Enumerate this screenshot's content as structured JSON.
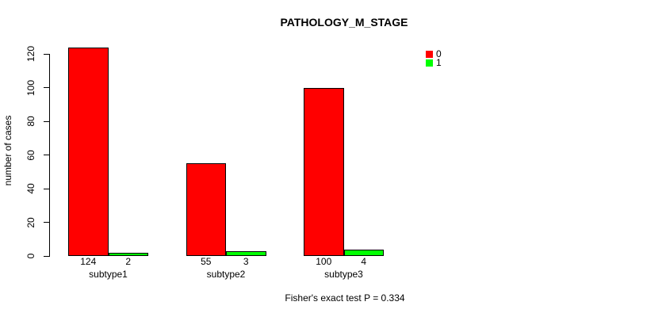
{
  "chart_data": {
    "type": "bar",
    "title": "PATHOLOGY_M_STAGE",
    "ylabel": "number of cases",
    "xlabel": "",
    "categories": [
      "subtype1",
      "subtype2",
      "subtype3"
    ],
    "series": [
      {
        "name": "0",
        "color": "#ff0000",
        "values": [
          124,
          55,
          100
        ]
      },
      {
        "name": "1",
        "color": "#00ff00",
        "values": [
          2,
          3,
          4
        ]
      }
    ],
    "bar_value_labels": [
      [
        124,
        2
      ],
      [
        55,
        3
      ],
      [
        100,
        4
      ]
    ],
    "yticks": [
      0,
      20,
      40,
      60,
      80,
      100,
      120
    ],
    "ylim": [
      0,
      124
    ],
    "grid": false,
    "legend_position": "top-right",
    "annotation": "Fisher's exact test P = 0.334",
    "colors": {
      "bar_border": "#000000",
      "axis": "#000000",
      "text": "#000000"
    }
  }
}
